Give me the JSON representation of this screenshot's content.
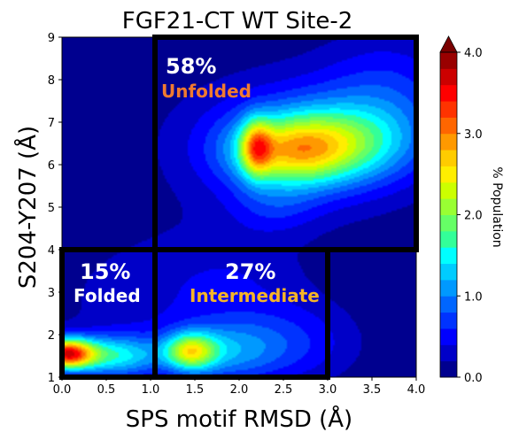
{
  "chart_data": {
    "type": "heatmap",
    "title": "FGF21-CT WT Site-2",
    "xlabel": "SPS motif RMSD (Å)",
    "ylabel": "S204-Y207 (Å)",
    "xlim": [
      0,
      4
    ],
    "ylim": [
      1,
      9
    ],
    "xticks": [
      "0.0",
      "0.5",
      "1.0",
      "1.5",
      "2.0",
      "2.5",
      "3.0",
      "3.5",
      "4.0"
    ],
    "yticks": [
      "1",
      "2",
      "3",
      "4",
      "5",
      "6",
      "7",
      "8",
      "9"
    ],
    "colorbar": {
      "label": "% Population",
      "range": [
        0,
        4
      ],
      "ticks": [
        "0.0",
        "1.0",
        "2.0",
        "3.0",
        "4.0"
      ],
      "extend": "max"
    },
    "grid": false,
    "peaks": [
      {
        "x": 2.2,
        "y": 6.4,
        "sx": 0.12,
        "sy": 0.45,
        "amp": 1.6
      },
      {
        "x": 2.55,
        "y": 6.3,
        "sx": 0.45,
        "sy": 0.55,
        "amp": 1.5
      },
      {
        "x": 3.1,
        "y": 6.5,
        "sx": 0.55,
        "sy": 0.6,
        "amp": 1.15
      },
      {
        "x": 2.7,
        "y": 6.5,
        "sx": 0.95,
        "sy": 1.1,
        "amp": 0.85
      },
      {
        "x": 3.7,
        "y": 7.6,
        "sx": 0.55,
        "sy": 1.1,
        "amp": 0.55
      },
      {
        "x": 2.4,
        "y": 5.0,
        "sx": 0.35,
        "sy": 0.45,
        "amp": 0.35
      },
      {
        "x": 0.05,
        "y": 1.55,
        "sx": 0.22,
        "sy": 0.25,
        "amp": 3.4
      },
      {
        "x": 0.6,
        "y": 1.5,
        "sx": 0.35,
        "sy": 0.35,
        "amp": 1.4
      },
      {
        "x": 1.45,
        "y": 1.6,
        "sx": 0.2,
        "sy": 0.3,
        "amp": 1.8
      },
      {
        "x": 1.8,
        "y": 1.6,
        "sx": 0.45,
        "sy": 0.5,
        "amp": 0.9
      },
      {
        "x": 2.6,
        "y": 1.8,
        "sx": 0.55,
        "sy": 0.7,
        "amp": 0.55
      },
      {
        "x": 1.0,
        "y": 2.8,
        "sx": 0.9,
        "sy": 1.3,
        "amp": 0.3
      },
      {
        "x": 2.0,
        "y": 3.3,
        "sx": 0.6,
        "sy": 0.8,
        "amp": 0.25
      }
    ],
    "regions": [
      {
        "name": "Unfolded",
        "percent": "58%",
        "x": [
          1.05,
          4.0
        ],
        "y": [
          4.0,
          9.0
        ],
        "label_color": "#f07a30"
      },
      {
        "name": "Folded",
        "percent": "15%",
        "x": [
          0.0,
          1.05
        ],
        "y": [
          1.0,
          4.0
        ],
        "label_color": "#ffffff"
      },
      {
        "name": "Intermediate",
        "percent": "27%",
        "x": [
          1.05,
          3.0
        ],
        "y": [
          1.0,
          4.0
        ],
        "label_color": "#f5b428"
      }
    ]
  },
  "labels": {
    "unfolded_percent": "58%",
    "unfolded_name": "Unfolded",
    "folded_percent": "15%",
    "folded_name": "Folded",
    "intermediate_percent": "27%",
    "intermediate_name": "Intermediate"
  },
  "colors": {
    "levels": [
      "#00008f",
      "#0000c8",
      "#0000ff",
      "#0033ff",
      "#0066ff",
      "#0099ff",
      "#00ccff",
      "#00ffff",
      "#33ff99",
      "#66ff66",
      "#99ff33",
      "#ccff00",
      "#ffee00",
      "#ffcc00",
      "#ff9900",
      "#ff6600",
      "#ff3300",
      "#ff0000",
      "#cc0000",
      "#990000"
    ],
    "box_border": "#000000",
    "unfolded_text": "#f07a30",
    "intermediate_text": "#f5b428",
    "folded_text": "#ffffff"
  }
}
